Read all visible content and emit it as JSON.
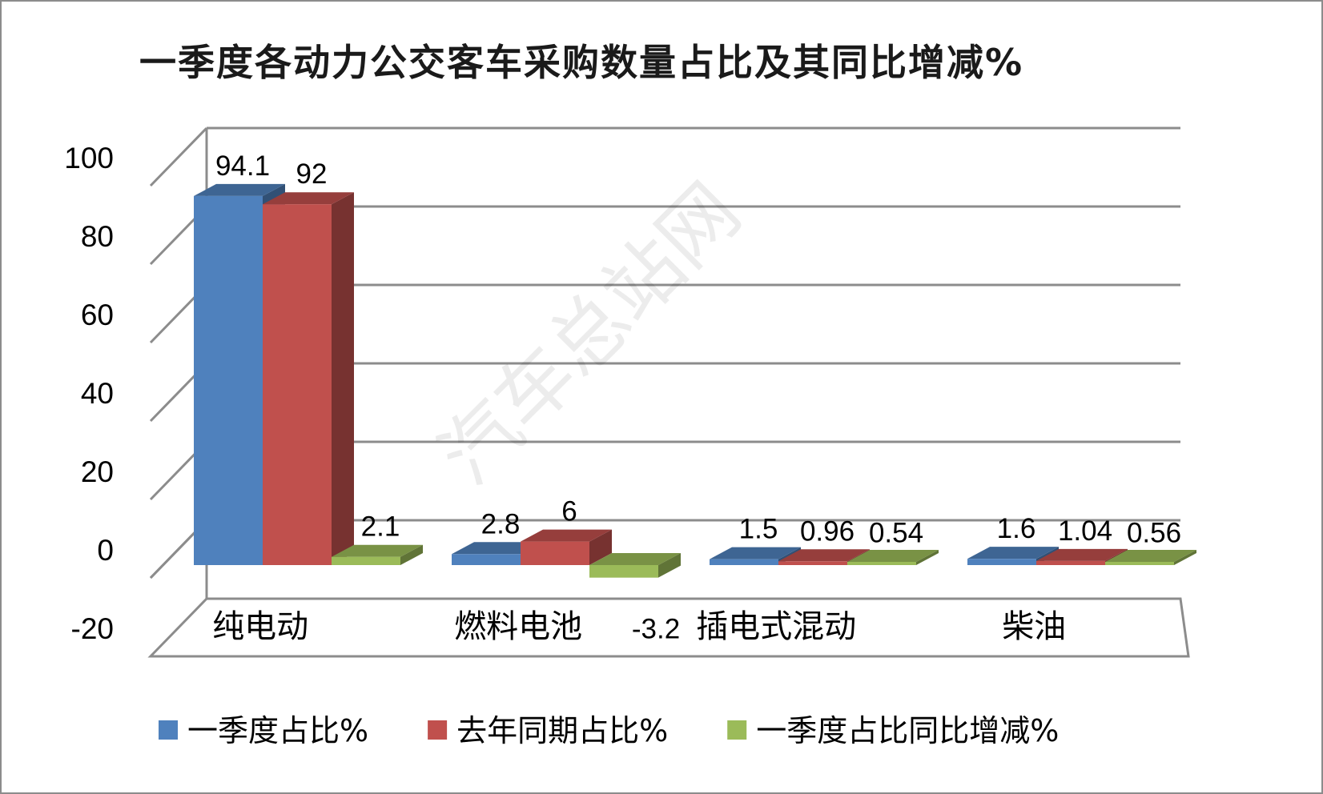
{
  "chart_data": {
    "type": "bar",
    "title": "一季度各动力公交客车采购数量占比及其同比增减%",
    "categories": [
      "纯电动",
      "燃料电池",
      "插电式混动",
      "柴油"
    ],
    "series": [
      {
        "name": "一季度占比%",
        "values": [
          94.1,
          2.8,
          1.5,
          1.6
        ],
        "labels": [
          "94.1",
          "2.8",
          "1.5",
          "1.6"
        ],
        "color": "#4f81bd"
      },
      {
        "name": "去年同期占比%",
        "values": [
          92,
          6,
          0.96,
          1.04
        ],
        "labels": [
          "92",
          "6",
          "0.96",
          "1.04"
        ],
        "color": "#c0504d"
      },
      {
        "name": "一季度占比同比增减%",
        "values": [
          2.1,
          -3.2,
          0.54,
          0.56
        ],
        "labels": [
          "2.1",
          "-3.2",
          "0.54",
          "0.56"
        ],
        "color": "#9bbb59"
      }
    ],
    "yticks": [
      "100",
      "80",
      "60",
      "40",
      "20",
      "0",
      "-20"
    ],
    "ylim": [
      -20,
      100
    ],
    "grid": true,
    "legend_position": "bottom",
    "style": "3d-clustered-column"
  },
  "watermark": "汽车总站网"
}
